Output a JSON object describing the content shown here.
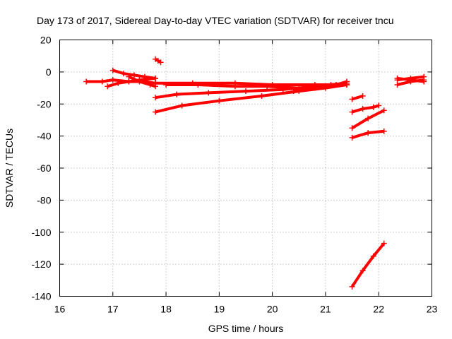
{
  "chart_data": {
    "type": "scatter",
    "title": "Day 173 of 2017, Sidereal Day-to-day VTEC variation (SDTVAR) for receiver tncu",
    "xlabel": "GPS time / hours",
    "ylabel": "SDTVAR / TECUs",
    "xlim": [
      16,
      23
    ],
    "ylim": [
      -140,
      20
    ],
    "xticks": [
      16,
      17,
      18,
      19,
      20,
      21,
      22,
      23
    ],
    "yticks": [
      -140,
      -120,
      -100,
      -80,
      -60,
      -40,
      -20,
      0,
      20
    ],
    "grid": true,
    "marker_color": "#ff0000",
    "series": [
      {
        "x": [
          16.5,
          16.8,
          17.0,
          17.3,
          17.6,
          17.8
        ],
        "y": [
          -6,
          -6,
          -5,
          -6,
          -6,
          -7
        ]
      },
      {
        "x": [
          16.9,
          17.1,
          17.3,
          17.5,
          17.8
        ],
        "y": [
          -9,
          -7,
          -6,
          -5,
          -4
        ]
      },
      {
        "x": [
          17.0,
          17.2,
          17.4,
          17.6,
          17.8
        ],
        "y": [
          1,
          -1,
          -2,
          -3,
          -4
        ]
      },
      {
        "x": [
          17.3,
          17.5,
          17.7,
          17.8
        ],
        "y": [
          -3,
          -6,
          -8,
          -9
        ]
      },
      {
        "x": [
          17.8,
          17.85,
          17.9
        ],
        "y": [
          8,
          7,
          6
        ]
      },
      {
        "x": [
          17.8,
          18.5,
          19.3,
          20.0,
          20.8,
          21.4
        ],
        "y": [
          -7,
          -7,
          -7,
          -8,
          -8,
          -8
        ]
      },
      {
        "x": [
          17.8,
          18.2,
          18.8,
          19.5,
          20.2,
          20.8,
          21.4
        ],
        "y": [
          -16,
          -14,
          -13,
          -12,
          -11,
          -9,
          -7
        ]
      },
      {
        "x": [
          17.8,
          18.3,
          19.0,
          19.8,
          20.5,
          21.0,
          21.4
        ],
        "y": [
          -25,
          -21,
          -18,
          -15,
          -12,
          -10,
          -8
        ]
      },
      {
        "x": [
          18.0,
          18.6,
          19.3,
          19.9,
          20.5,
          21.0,
          21.4
        ],
        "y": [
          -8,
          -8,
          -9,
          -9,
          -10,
          -9,
          -8
        ]
      },
      {
        "x": [
          20.4,
          20.8,
          21.1,
          21.4
        ],
        "y": [
          -12,
          -10,
          -8,
          -7
        ]
      },
      {
        "x": [
          20.6,
          20.9,
          21.2,
          21.4
        ],
        "y": [
          -10,
          -9,
          -8,
          -6
        ]
      },
      {
        "x": [
          21.5,
          21.7
        ],
        "y": [
          -17,
          -15
        ]
      },
      {
        "x": [
          21.5,
          21.7,
          21.9,
          22.0
        ],
        "y": [
          -25,
          -23,
          -22,
          -21
        ]
      },
      {
        "x": [
          21.5,
          21.8,
          22.1
        ],
        "y": [
          -35,
          -29,
          -24
        ]
      },
      {
        "x": [
          21.5,
          21.8,
          22.1
        ],
        "y": [
          -41,
          -38,
          -37
        ]
      },
      {
        "x": [
          21.5,
          21.7,
          21.9,
          22.1
        ],
        "y": [
          -134,
          -124,
          -115,
          -107
        ]
      },
      {
        "x": [
          22.35,
          22.6,
          22.85
        ],
        "y": [
          -5,
          -4,
          -3
        ]
      },
      {
        "x": [
          22.35,
          22.6,
          22.85
        ],
        "y": [
          -8,
          -6,
          -5
        ]
      },
      {
        "x": [
          22.35,
          22.6,
          22.85
        ],
        "y": [
          -4,
          -5,
          -6
        ]
      }
    ]
  }
}
